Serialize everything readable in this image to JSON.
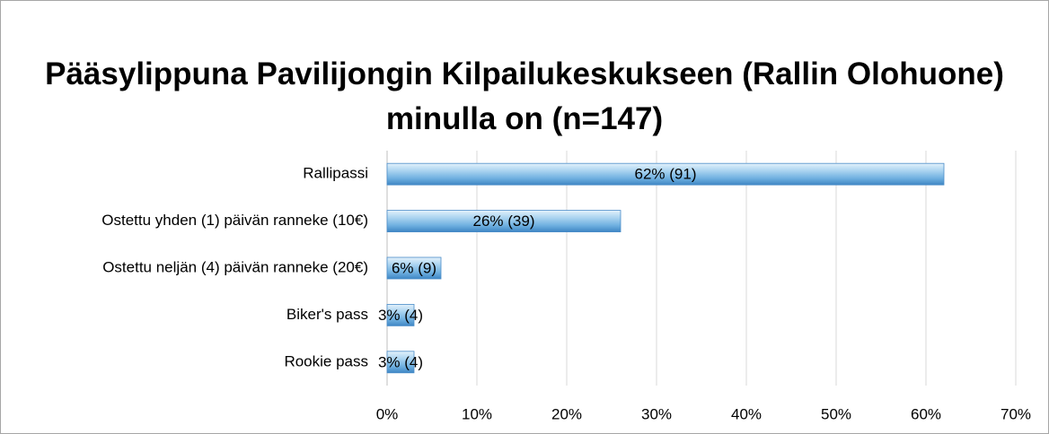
{
  "chart_data": {
    "type": "bar",
    "orientation": "horizontal",
    "title": "Pääsylippuna Pavilijongin Kilpailukeskukseen (Rallin Olohuone) minulla on (n=147)",
    "categories": [
      "Rallipassi",
      "Ostettu yhden (1) päivän ranneke (10€)",
      "Ostettu neljän (4) päivän ranneke (20€)",
      "Biker's pass",
      "Rookie pass"
    ],
    "values": [
      62,
      26,
      6,
      3,
      3
    ],
    "value_labels": [
      "62% (91)",
      "26% (39)",
      "6% (9)",
      "3% (4)",
      "3% (4)"
    ],
    "color": "#5b9bd5",
    "xlim": [
      0,
      70
    ],
    "xticks": [
      {
        "value": 0,
        "label": "0%"
      },
      {
        "value": 10,
        "label": "10%"
      },
      {
        "value": 20,
        "label": "20%"
      },
      {
        "value": 30,
        "label": "30%"
      },
      {
        "value": 40,
        "label": "40%"
      },
      {
        "value": 50,
        "label": "50%"
      },
      {
        "value": 60,
        "label": "60%"
      },
      {
        "value": 70,
        "label": "70%"
      }
    ],
    "grid": true
  }
}
